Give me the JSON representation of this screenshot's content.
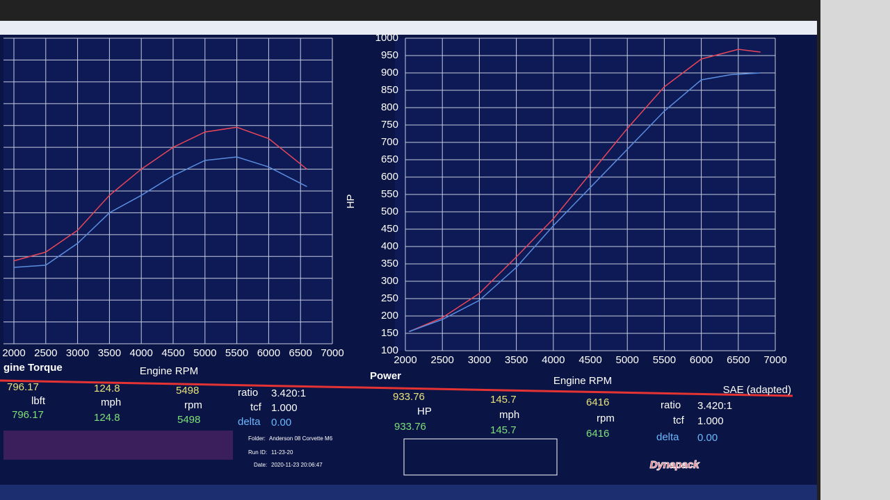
{
  "chart_data": [
    {
      "type": "line",
      "title": "gine Torque",
      "x_label": "Engine RPM",
      "xlim": [
        2000,
        7000
      ],
      "xticks": [
        2000,
        2500,
        3000,
        3500,
        4000,
        4500,
        5000,
        5500,
        6000,
        6500,
        7000
      ],
      "ylim": [
        300,
        1000
      ],
      "grid": true,
      "series": [
        {
          "color": "#e8465a",
          "x": [
            2000,
            2500,
            3000,
            3500,
            4000,
            4500,
            5000,
            5498,
            6000,
            6600
          ],
          "values": [
            490,
            510,
            560,
            640,
            700,
            750,
            785,
            796,
            770,
            700
          ]
        },
        {
          "color": "#5a8de0",
          "x": [
            2000,
            2500,
            3000,
            3500,
            4000,
            4500,
            5000,
            5500,
            6000,
            6600
          ],
          "values": [
            475,
            480,
            530,
            600,
            640,
            685,
            720,
            728,
            705,
            660
          ]
        }
      ]
    },
    {
      "type": "line",
      "title": "Power",
      "x_label": "Engine RPM",
      "y_label": "HP",
      "note": "SAE (adapted)",
      "xlim": [
        2000,
        7000
      ],
      "xticks": [
        2000,
        2500,
        3000,
        3500,
        4000,
        4500,
        5000,
        5500,
        6000,
        6500,
        7000
      ],
      "ylim": [
        100,
        1000
      ],
      "yticks": [
        100,
        150,
        200,
        250,
        300,
        350,
        400,
        450,
        500,
        550,
        600,
        650,
        700,
        750,
        800,
        850,
        900,
        950,
        1000
      ],
      "grid": true,
      "series": [
        {
          "color": "#e8465a",
          "x": [
            2050,
            2500,
            3000,
            3500,
            4000,
            4500,
            5000,
            5500,
            6000,
            6500,
            6800
          ],
          "values": [
            155,
            195,
            265,
            370,
            480,
            610,
            740,
            860,
            940,
            968,
            960
          ]
        },
        {
          "color": "#5a8de0",
          "x": [
            2050,
            2500,
            3000,
            3500,
            4000,
            4500,
            5000,
            5500,
            6000,
            6400,
            6800
          ],
          "values": [
            155,
            190,
            245,
            340,
            460,
            570,
            680,
            790,
            880,
            895,
            900
          ]
        }
      ]
    }
  ],
  "readout_left": {
    "main": "796.17",
    "main_unit": "lbft",
    "main_2": "796.17",
    "speed": "124.8",
    "speed_unit": "mph",
    "speed_2": "124.8",
    "rpm": "5498",
    "rpm_unit": "rpm",
    "rpm_2": "5498",
    "ratio_label": "ratio",
    "ratio": "3.420:1",
    "tcf_label": "tcf",
    "tcf": "1.000",
    "delta_label": "delta",
    "delta": "0.00"
  },
  "readout_right": {
    "main": "933.76",
    "main_unit": "HP",
    "main_2": "933.76",
    "speed": "145.7",
    "speed_unit": "mph",
    "speed_2": "145.7",
    "rpm": "6416",
    "rpm_unit": "rpm",
    "rpm_2": "6416",
    "ratio_label": "ratio",
    "ratio": "3.420:1",
    "tcf_label": "tcf",
    "tcf": "1.000",
    "delta_label": "delta",
    "delta": "0.00"
  },
  "run_info": {
    "folder_label": "Folder:",
    "folder": "Anderson 08 Corvette M6",
    "run_label": "Run ID:",
    "run": "11-23-20",
    "date_label": "Date:",
    "date": "2020-11-23 20:06:47"
  },
  "brand": "Dynapack"
}
